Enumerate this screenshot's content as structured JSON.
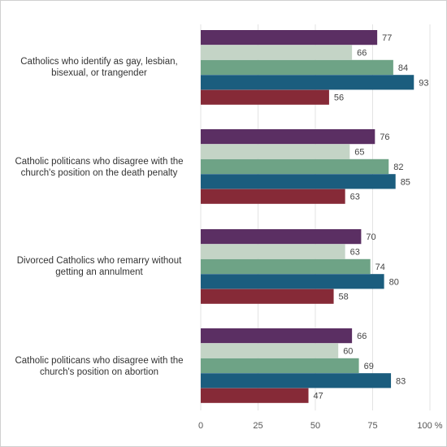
{
  "chart_data": {
    "type": "bar",
    "orientation": "horizontal",
    "categories": [
      "Catholics who identify as gay, lesbian, bisexual, or trangender",
      "Catholic politicans who disagree with the church's position on the death penalty",
      "Divorced Catholics who remarry without getting an annulment",
      "Catholic politicans who disagree with the church's position on abortion"
    ],
    "series": [
      {
        "values": [
          77,
          76,
          70,
          66
        ]
      },
      {
        "values": [
          66,
          65,
          63,
          60
        ]
      },
      {
        "values": [
          84,
          82,
          74,
          69
        ]
      },
      {
        "values": [
          93,
          85,
          80,
          83
        ]
      },
      {
        "values": [
          56,
          63,
          58,
          47
        ]
      }
    ],
    "xlim": [
      0,
      100
    ],
    "xticks": [
      "0",
      "25",
      "50",
      "75",
      "100 %"
    ],
    "colors": [
      "#5b2f63",
      "#c4d4c6",
      "#6ea386",
      "#1b5d7e",
      "#862a37"
    ],
    "grid": true,
    "legend": "none",
    "title": "",
    "xlabel": "",
    "ylabel": ""
  }
}
